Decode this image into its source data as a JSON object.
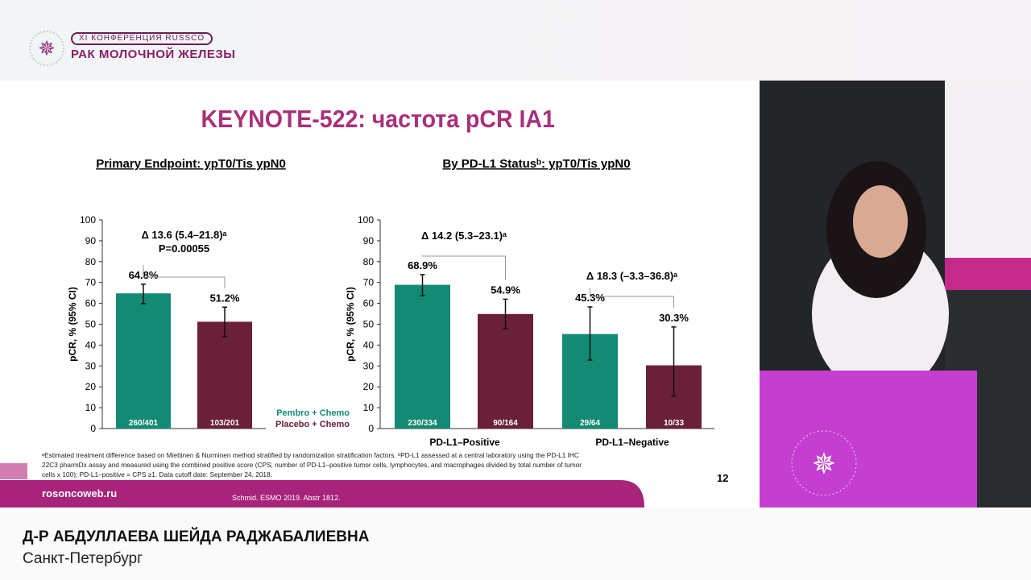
{
  "header": {
    "conference_label": "XI КОНФЕРЕНЦИЯ RUSSCO",
    "conference_name": "РАК МОЛОЧНОЙ ЖЕЛЕЗЫ",
    "logo_text": "RUSSCO"
  },
  "slide": {
    "title": "KEYNOTE-522: частота pCR IA1",
    "page_number": "12",
    "website": "rosoncoweb.ru",
    "citation": "Schmid. ESMO 2019. Abstr 1812.",
    "footnote_lines": [
      "ᵃEstimated treatment difference based on Miettinen & Nurminen method stratified by randomization stratification factors. ᵇPD-L1 assessed at a central laboratory using the PD-L1 IHC",
      "22C3 pharmDx assay and measured using the combined positive score (CPS; number of PD-L1–positive tumor cells, lymphocytes, and macrophages divided by total number of tumor",
      "cells x 100); PD-L1–positive = CPS ≥1. Data cutoff date: September 24, 2018."
    ],
    "legend": [
      {
        "label": "Pembro + Chemo",
        "color": "#138a74"
      },
      {
        "label": "Placebo + Chemo",
        "color": "#6a2038"
      }
    ]
  },
  "chart_data": [
    {
      "type": "bar",
      "title": "Primary Endpoint: ypT0/Tis ypN0",
      "ylabel": "pCR, % (95% CI)",
      "ylim": [
        0,
        100
      ],
      "yticks": [
        0,
        10,
        20,
        30,
        40,
        50,
        60,
        70,
        80,
        90,
        100
      ],
      "categories": [
        ""
      ],
      "bars": [
        {
          "series": "Pembro + Chemo",
          "value": 64.8,
          "label": "64.8%",
          "ci": [
            59.9,
            69.2
          ],
          "n": "260/401"
        },
        {
          "series": "Placebo + Chemo",
          "value": 51.2,
          "label": "51.2%",
          "ci": [
            44.1,
            58.2
          ],
          "n": "103/201"
        }
      ],
      "annotations": [
        {
          "text": "Δ 13.6 (5.4–21.8)ᵃ"
        },
        {
          "text": "P=0.00055"
        }
      ]
    },
    {
      "type": "bar",
      "title": "By PD-L1 Statusᵇ: ypT0/Tis ypN0",
      "ylabel": "pCR, % (95% CI)",
      "ylim": [
        0,
        100
      ],
      "yticks": [
        0,
        10,
        20,
        30,
        40,
        50,
        60,
        70,
        80,
        90,
        100
      ],
      "categories": [
        "PD-L1–Positive",
        "PD-L1–Negative"
      ],
      "bars": [
        {
          "series": "Pembro + Chemo",
          "category": "PD-L1–Positive",
          "value": 68.9,
          "label": "68.9%",
          "ci": [
            63.7,
            73.8
          ],
          "n": "230/334"
        },
        {
          "series": "Placebo + Chemo",
          "category": "PD-L1–Positive",
          "value": 54.9,
          "label": "54.9%",
          "ci": [
            47.9,
            62.0
          ],
          "n": "90/164"
        },
        {
          "series": "Pembro + Chemo",
          "category": "PD-L1–Negative",
          "value": 45.3,
          "label": "45.3%",
          "ci": [
            32.8,
            58.3
          ],
          "n": "29/64"
        },
        {
          "series": "Placebo + Chemo",
          "category": "PD-L1–Negative",
          "value": 30.3,
          "label": "30.3%",
          "ci": [
            15.6,
            48.7
          ],
          "n": "10/33"
        }
      ],
      "annotations": [
        {
          "text": "Δ 14.2 (5.3–23.1)ᵃ"
        },
        {
          "text": "Δ 18.3 (–3.3–36.8)ᵃ"
        }
      ]
    }
  ],
  "lower_third": {
    "speaker": "Д-Р АБДУЛЛАЕВА ШЕЙДА РАДЖАБАЛИЕВНА",
    "city": "Санкт-Петербург"
  }
}
